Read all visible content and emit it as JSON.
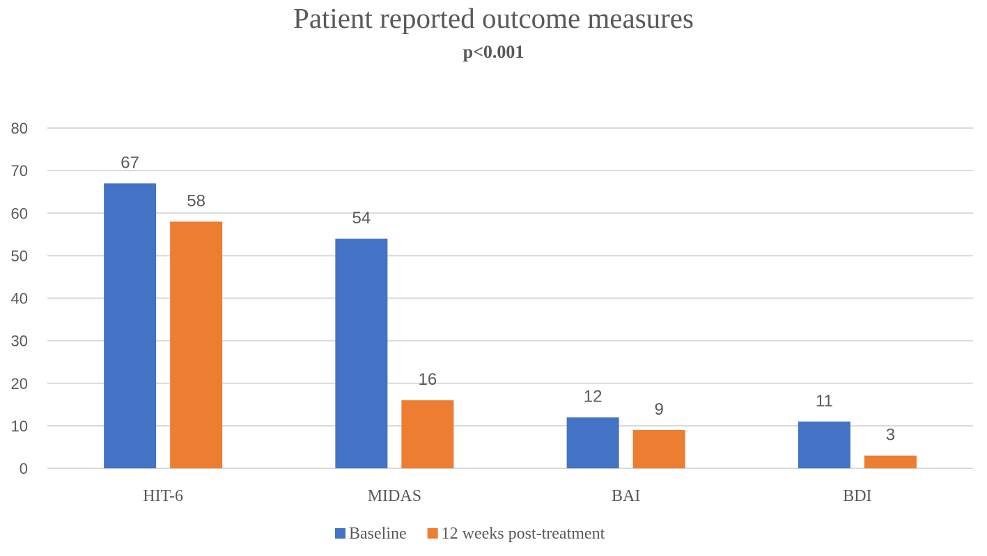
{
  "chart_data": {
    "type": "bar",
    "title": "Patient reported outcome measures",
    "subtitle": "p<0.001",
    "xlabel": "",
    "ylabel": "",
    "categories": [
      "HIT-6",
      "MIDAS",
      "BAI",
      "BDI"
    ],
    "series": [
      {
        "name": "Baseline",
        "color": "#4472C4",
        "values": [
          67,
          54,
          12,
          11
        ]
      },
      {
        "name": "12 weeks post-treatment",
        "color": "#ED7D31",
        "values": [
          58,
          16,
          9,
          3
        ]
      }
    ],
    "ylim": [
      0,
      80
    ],
    "yticks": [
      0,
      10,
      20,
      30,
      40,
      50,
      60,
      70,
      80
    ],
    "grid": true,
    "legend": "bottom-center",
    "gridColor": "#D9D9D9",
    "textColor": "#595959"
  }
}
